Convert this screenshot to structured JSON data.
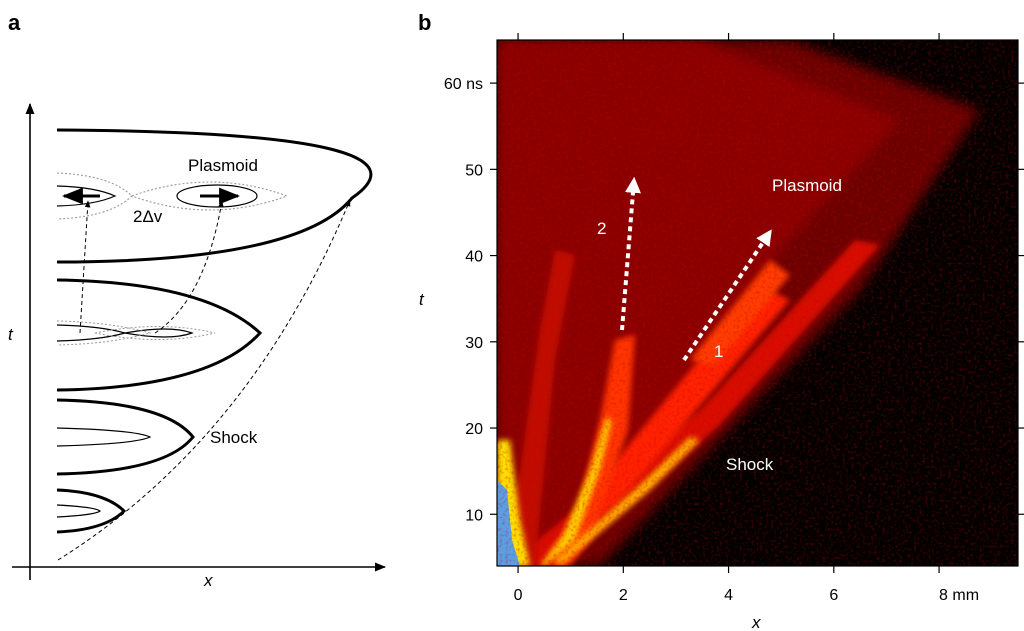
{
  "panel_a": {
    "letter": "a",
    "x_label": "x",
    "t_label": "t",
    "plasmoid_label": "Plasmoid",
    "delta_label": "2Δv",
    "shock_label": "Shock"
  },
  "panel_b": {
    "letter": "b",
    "plasmoid_label": "Plasmoid",
    "shock_label": "Shock",
    "arrow_1_label": "1",
    "arrow_2_label": "2"
  },
  "chart_data": {
    "type": "heatmap",
    "xlabel": "x",
    "ylabel": "t",
    "xlim": [
      -0.4,
      9.5
    ],
    "ylim": [
      4,
      65
    ],
    "x_ticks": [
      {
        "value": 0,
        "label": "0"
      },
      {
        "value": 2,
        "label": "2"
      },
      {
        "value": 4,
        "label": "4"
      },
      {
        "value": 6,
        "label": "6"
      },
      {
        "value": 8,
        "label": "8 mm"
      }
    ],
    "y_ticks": [
      {
        "value": 10,
        "label": "10"
      },
      {
        "value": 20,
        "label": "20"
      },
      {
        "value": 30,
        "label": "30"
      },
      {
        "value": 40,
        "label": "40"
      },
      {
        "value": 50,
        "label": "50"
      },
      {
        "value": 60,
        "label": "60 ns"
      }
    ],
    "colors": {
      "background": "#000000",
      "low": "#7a0000",
      "mid": "#ff2a00",
      "high": "#ffe000",
      "max": "#5aa0e6"
    }
  }
}
